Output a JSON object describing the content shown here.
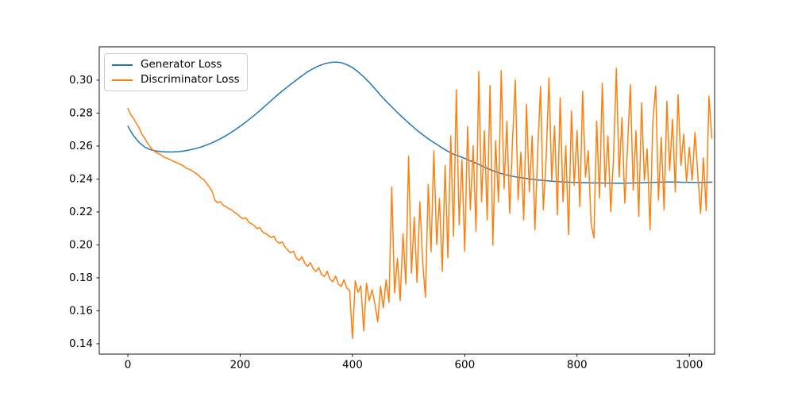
{
  "figure_background": "#ffffff",
  "axes": {
    "spine_color": "#000000",
    "tick_color": "#000000",
    "grid": false
  },
  "chart_data": {
    "type": "line",
    "title": "",
    "xlabel": "",
    "ylabel": "",
    "xlim": [
      -51,
      1045
    ],
    "ylim": [
      0.1337,
      0.3202
    ],
    "x_ticks": [
      0,
      200,
      400,
      600,
      800,
      1000
    ],
    "x_tick_labels": [
      "0",
      "200",
      "400",
      "600",
      "800",
      "1000"
    ],
    "y_ticks": [
      0.14,
      0.16,
      0.18,
      0.2,
      0.22,
      0.24,
      0.26,
      0.28,
      0.3
    ],
    "y_tick_labels": [
      "0.14",
      "0.16",
      "0.18",
      "0.20",
      "0.22",
      "0.24",
      "0.26",
      "0.28",
      "0.30"
    ],
    "grid": false,
    "legend": {
      "loc": "upper left",
      "frame": true,
      "frame_color": "#cccccc"
    },
    "series": [
      {
        "name": "Generator Loss",
        "color": "#1f77b4",
        "line_width": 1.5,
        "x_start": 0,
        "x_step": 10,
        "values": [
          0.272,
          0.2663,
          0.2622,
          0.2594,
          0.2578,
          0.257,
          0.2566,
          0.2564,
          0.2564,
          0.2566,
          0.257,
          0.2576,
          0.2584,
          0.2594,
          0.2606,
          0.262,
          0.2636,
          0.2654,
          0.2674,
          0.2696,
          0.272,
          0.2745,
          0.2772,
          0.28,
          0.283,
          0.286,
          0.289,
          0.292,
          0.2948,
          0.2975,
          0.3,
          0.3026,
          0.305,
          0.307,
          0.3087,
          0.3099,
          0.3107,
          0.311,
          0.3106,
          0.3094,
          0.3076,
          0.305,
          0.302,
          0.2986,
          0.2948,
          0.2908,
          0.2872,
          0.2838,
          0.2804,
          0.2771,
          0.274,
          0.271,
          0.2682,
          0.2656,
          0.2632,
          0.261,
          0.2588,
          0.2568,
          0.255,
          0.2538,
          0.2525,
          0.251,
          0.2496,
          0.248,
          0.2464,
          0.245,
          0.2438,
          0.2428,
          0.242,
          0.2413,
          0.2408,
          0.2403,
          0.2398,
          0.2394,
          0.2391,
          0.2388,
          0.2385,
          0.2383,
          0.2381,
          0.238,
          0.2379,
          0.2378,
          0.2377,
          0.2376,
          0.2376,
          0.2375,
          0.2375,
          0.2374,
          0.2374,
          0.2375,
          0.2376,
          0.2377,
          0.2378,
          0.2379,
          0.238,
          0.2381,
          0.2382,
          0.2382,
          0.2381,
          0.238,
          0.238,
          0.2379,
          0.2379,
          0.238,
          0.2381
        ]
      },
      {
        "name": "Discriminator Loss",
        "color": "#ff7f0e",
        "line_width": 1.5,
        "x_start": 0,
        "x_step": 5,
        "values": [
          0.2828,
          0.2792,
          0.2768,
          0.2738,
          0.271,
          0.2672,
          0.2648,
          0.2618,
          0.2594,
          0.2574,
          0.2562,
          0.2553,
          0.2544,
          0.2531,
          0.2526,
          0.2518,
          0.2509,
          0.2502,
          0.2494,
          0.2486,
          0.2477,
          0.2463,
          0.2459,
          0.2448,
          0.2437,
          0.2425,
          0.2408,
          0.2396,
          0.2375,
          0.2352,
          0.2326,
          0.2272,
          0.2256,
          0.2262,
          0.2239,
          0.2232,
          0.222,
          0.2212,
          0.2197,
          0.2186,
          0.217,
          0.2158,
          0.2165,
          0.214,
          0.2128,
          0.2118,
          0.2098,
          0.2106,
          0.2078,
          0.207,
          0.2058,
          0.2045,
          0.2052,
          0.2022,
          0.201,
          0.2018,
          0.1986,
          0.1968,
          0.1952,
          0.1962,
          0.192,
          0.1905,
          0.1928,
          0.189,
          0.187,
          0.1892,
          0.1856,
          0.1838,
          0.1862,
          0.1822,
          0.1808,
          0.184,
          0.1792,
          0.1776,
          0.181,
          0.1762,
          0.1748,
          0.1788,
          0.1738,
          0.1722,
          0.1432,
          0.1782,
          0.1712,
          0.1752,
          0.1478,
          0.1768,
          0.1662,
          0.1728,
          0.1642,
          0.1532,
          0.1748,
          0.1618,
          0.1788,
          0.1652,
          0.2352,
          0.1708,
          0.1918,
          0.1662,
          0.2068,
          0.1762,
          0.2538,
          0.1828,
          0.2168,
          0.1772,
          0.2262,
          0.1898,
          0.1682,
          0.2368,
          0.1958,
          0.2572,
          0.2002,
          0.2282,
          0.1838,
          0.2482,
          0.1922,
          0.2662,
          0.2052,
          0.2942,
          0.2122,
          0.2518,
          0.1962,
          0.2718,
          0.2212,
          0.2602,
          0.2082,
          0.3052,
          0.2262,
          0.2692,
          0.2152,
          0.2968,
          0.1998,
          0.2632,
          0.2262,
          0.3058,
          0.2342,
          0.2752,
          0.2192,
          0.2622,
          0.3002,
          0.2272,
          0.2562,
          0.2152,
          0.2852,
          0.2322,
          0.2662,
          0.2092,
          0.2572,
          0.2962,
          0.2212,
          0.2532,
          0.3012,
          0.2392,
          0.2722,
          0.2182,
          0.2892,
          0.2262,
          0.2602,
          0.2062,
          0.2812,
          0.2362,
          0.2692,
          0.2232,
          0.2932,
          0.2412,
          0.2572,
          0.2132,
          0.2042,
          0.2752,
          0.2282,
          0.2982,
          0.2352,
          0.2662,
          0.2202,
          0.2532,
          0.3072,
          0.2412,
          0.2772,
          0.2252,
          0.2602,
          0.2972,
          0.2332,
          0.2692,
          0.2172,
          0.2862,
          0.2392,
          0.2582,
          0.2092,
          0.2742,
          0.2962,
          0.2272,
          0.2652,
          0.2212,
          0.2872,
          0.2452,
          0.2762,
          0.2322,
          0.2912,
          0.2482,
          0.2672,
          0.2382,
          0.2592,
          0.2392,
          0.2682,
          0.2432,
          0.2192,
          0.2528,
          0.2208,
          0.2902,
          0.2648
        ]
      }
    ]
  }
}
